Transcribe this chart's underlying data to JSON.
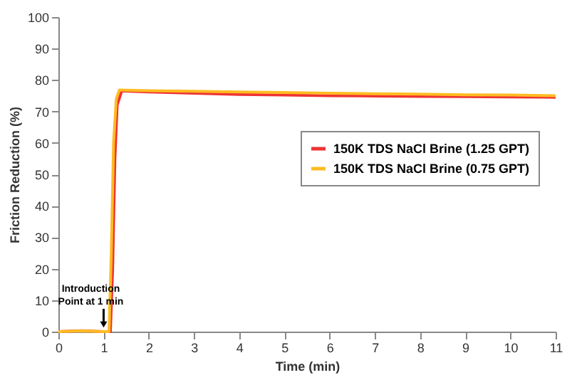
{
  "chart_data": {
    "type": "line",
    "xlabel": "Time (min)",
    "ylabel": "Friction Reduction (%)",
    "xlim": [
      0,
      11
    ],
    "xticks": [
      0,
      1,
      2,
      3,
      4,
      5,
      6,
      7,
      8,
      9,
      10,
      11
    ],
    "ylim": [
      0,
      100
    ],
    "yticks": [
      0,
      10,
      20,
      30,
      40,
      50,
      60,
      70,
      80,
      90,
      100
    ],
    "grid": false,
    "legend": "right",
    "marker": "none",
    "line_style": "solid",
    "annotations": [
      {
        "text": "Introduction\nPoint at 1 min",
        "x": 1,
        "y": 0
      }
    ],
    "series": [
      {
        "name": "150K TDS NaCl Brine (1.25 GPT)",
        "color": "#ee3333",
        "x": [
          0,
          0.5,
          1,
          1.15,
          1.2,
          1.25,
          1.3,
          1.4,
          2,
          3,
          4,
          5,
          6,
          7,
          8,
          9,
          10,
          11
        ],
        "values": [
          0,
          0.3,
          0,
          0,
          20,
          55,
          72,
          76.5,
          76.2,
          75.8,
          75.4,
          75.2,
          75,
          74.9,
          74.8,
          74.7,
          74.6,
          74.5
        ]
      },
      {
        "name": "150K TDS NaCl Brine (0.75 GPT)",
        "color": "#ffbb22",
        "x": [
          0,
          0.5,
          1,
          1.12,
          1.17,
          1.22,
          1.28,
          1.35,
          2,
          3,
          4,
          5,
          6,
          7,
          8,
          9,
          10,
          11
        ],
        "values": [
          0,
          0.2,
          0,
          0,
          25,
          60,
          74,
          76.8,
          76.6,
          76.4,
          76.2,
          76,
          75.8,
          75.6,
          75.5,
          75.3,
          75.2,
          75
        ]
      }
    ]
  }
}
